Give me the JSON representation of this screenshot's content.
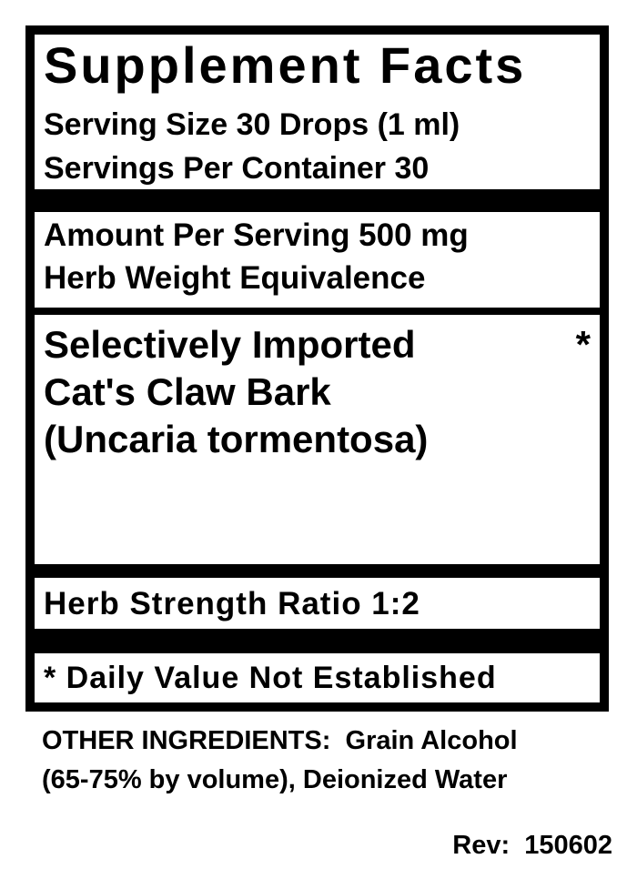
{
  "header": {
    "title": "Supplement Facts",
    "serving_size": "Serving Size 30 Drops (1 ml)",
    "servings_per_container": "Servings Per Container 30"
  },
  "amount": {
    "lines": [
      "Amount Per Serving 500 mg",
      "Herb Weight Equivalence"
    ]
  },
  "ingredient": {
    "lines": [
      "Selectively Imported",
      "Cat's Claw Bark",
      "(Uncaria tormentosa)"
    ],
    "marker": "*"
  },
  "strength": "Herb Strength Ratio 1:2",
  "footnote": "* Daily Value Not Established",
  "other_ingredients": {
    "lines": [
      "OTHER INGREDIENTS:  Grain Alcohol",
      "(65-75% by volume), Deionized Water"
    ]
  },
  "rev": "Rev:  150602"
}
